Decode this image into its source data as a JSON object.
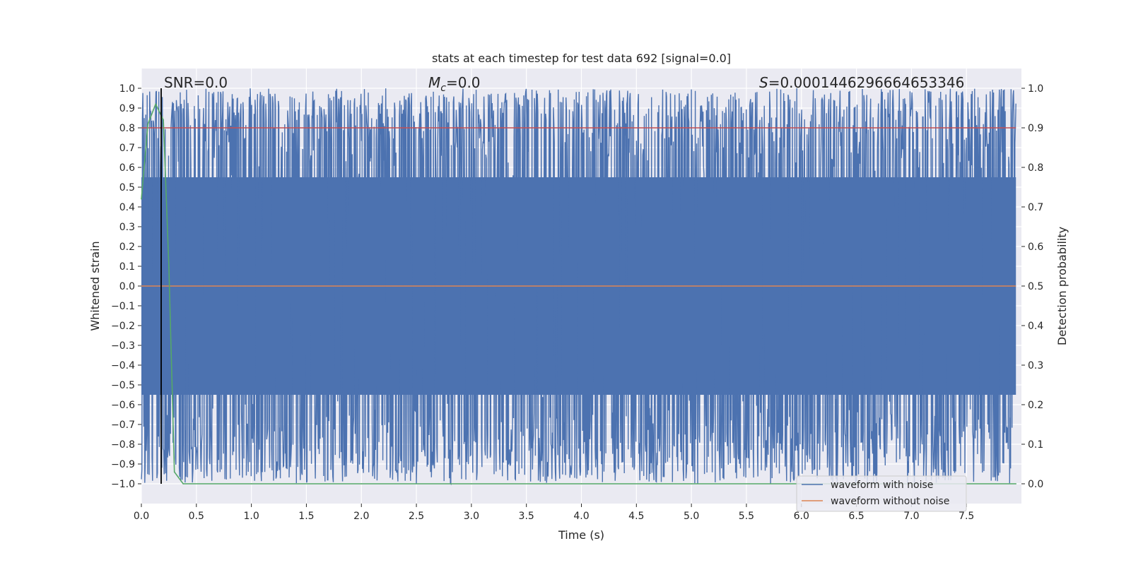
{
  "chart_data": {
    "type": "line",
    "title": "stats at each timestep for test data 692 [signal=0.0]",
    "xlabel": "Time (s)",
    "ylabel_left": "Whitened strain",
    "ylabel_right": "Detection probability",
    "xlim": [
      0.0,
      8.0
    ],
    "ylim_left": [
      -1.1,
      1.1
    ],
    "ylim_right": [
      -0.05,
      1.05
    ],
    "x_ticks": [
      "0.0",
      "0.5",
      "1.0",
      "1.5",
      "2.0",
      "2.5",
      "3.0",
      "3.5",
      "4.0",
      "4.5",
      "5.0",
      "5.5",
      "6.0",
      "6.5",
      "7.0",
      "7.5"
    ],
    "y_ticks_left": [
      "1.0",
      "0.9",
      "0.8",
      "0.7",
      "0.6",
      "0.5",
      "0.4",
      "0.3",
      "0.2",
      "0.1",
      "0.0",
      "−0.1",
      "−0.2",
      "−0.3",
      "−0.4",
      "−0.5",
      "−0.6",
      "−0.7",
      "−0.8",
      "−0.9",
      "−1.0"
    ],
    "y_ticks_right": [
      "1.0",
      "0.9",
      "0.8",
      "0.7",
      "0.6",
      "0.5",
      "0.4",
      "0.3",
      "0.2",
      "0.1",
      "0.0"
    ],
    "grid": true,
    "legend_position": "lower-right",
    "series": [
      {
        "name": "waveform with noise",
        "color": "#4c72b0",
        "axis": "left",
        "description_range": [
          -1.0,
          1.0
        ]
      },
      {
        "name": "waveform without noise",
        "color": "#dd8452",
        "axis": "left",
        "constant_value": 0.0
      },
      {
        "axis": "right",
        "color": "#55a868",
        "x": [
          0.0,
          0.06,
          0.13,
          0.2,
          0.25,
          0.3,
          0.38,
          1.0,
          2.0,
          3.0,
          4.0,
          5.0,
          6.0,
          7.0,
          7.95
        ],
        "y": [
          0.72,
          0.91,
          0.96,
          0.92,
          0.55,
          0.03,
          0.0,
          0.0,
          0.0,
          0.0,
          0.0,
          0.0,
          0.0,
          0.0,
          0.0
        ]
      },
      {
        "axis": "right",
        "color": "#c44e52",
        "constant_value": 0.9
      }
    ],
    "vertical_line": {
      "x": 0.18,
      "color": "#000000"
    },
    "annotations": {
      "snr": "SNR=0.0",
      "mc_symbol": "M",
      "mc_sub": "c",
      "mc_value": "=0.0",
      "s_symbol": "S",
      "s_value": "=0.0001446296664653346"
    },
    "background_color": "#eaeaf2"
  }
}
